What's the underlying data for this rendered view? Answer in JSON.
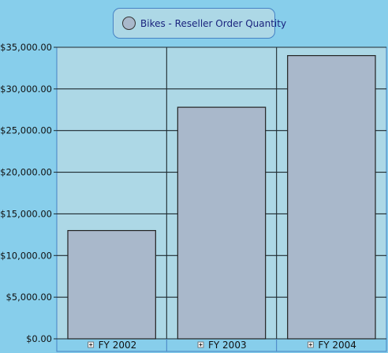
{
  "colors": {
    "background": "#87ceeb",
    "plot_background": "#add8e6",
    "bar_fill": "#a9b8cb",
    "legend_border": "#4682c4",
    "legend_text": "#1a237e"
  },
  "chart_data": {
    "type": "bar",
    "series": [
      {
        "name": "Bikes - Reseller Order Quantity",
        "values": [
          13000,
          27800,
          34000
        ]
      }
    ],
    "categories": [
      "FY 2002",
      "FY 2003",
      "FY 2004"
    ],
    "yticks": [
      "$0.00",
      "$5,000.00",
      "$10,000.00",
      "$15,000.00",
      "$20,000.00",
      "$25,000.00",
      "$30,000.00",
      "$35,000.00"
    ],
    "ylim": [
      0,
      35000
    ],
    "ystep": 5000,
    "grid": true,
    "legend_position": "top-center",
    "category_icon": "expand-plus-icon"
  }
}
